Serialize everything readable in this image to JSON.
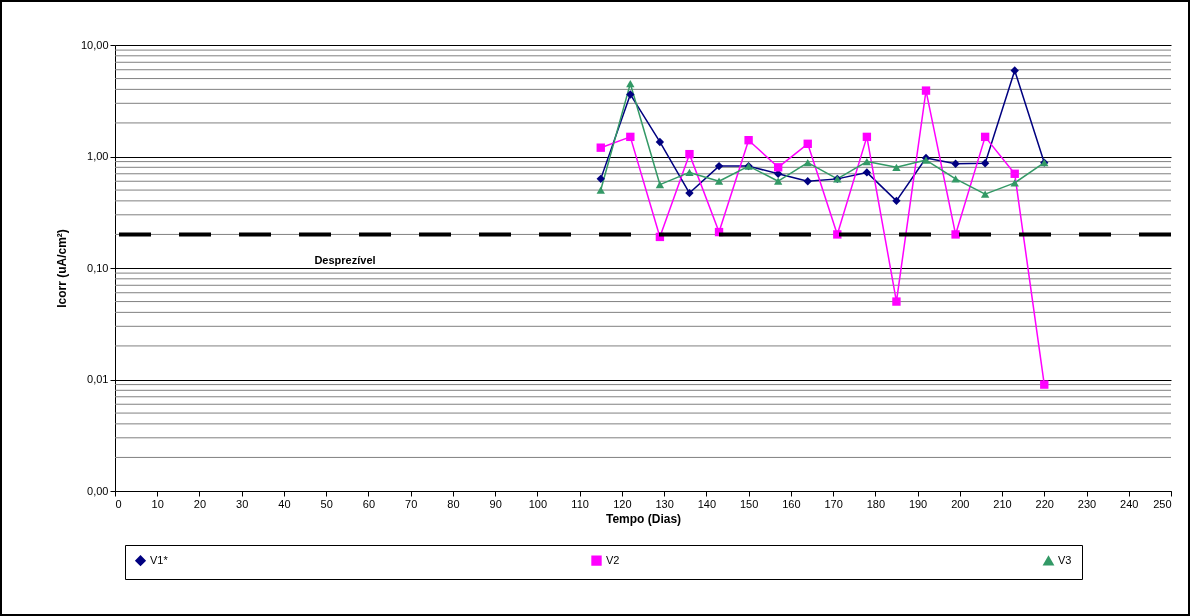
{
  "chart_data": {
    "type": "line",
    "xlabel": "Tempo (Dias)",
    "ylabel": "Icorr (uA/cm²)",
    "x": [
      115,
      122,
      129,
      136,
      143,
      150,
      157,
      164,
      171,
      178,
      185,
      192,
      199,
      206,
      213,
      220
    ],
    "series": [
      {
        "name": "V1*",
        "color": "#000080",
        "marker": "diamond",
        "values": [
          0.63,
          3.6,
          1.35,
          0.47,
          0.82,
          0.82,
          0.7,
          0.6,
          0.63,
          0.72,
          0.4,
          0.97,
          0.86,
          0.87,
          5.9,
          0.88
        ]
      },
      {
        "name": "V2",
        "color": "#ff00ff",
        "marker": "square",
        "values": [
          1.2,
          1.5,
          0.19,
          1.05,
          0.21,
          1.4,
          0.8,
          1.3,
          0.2,
          1.5,
          0.05,
          3.9,
          0.2,
          1.5,
          0.7,
          0.009
        ]
      },
      {
        "name": "V3",
        "color": "#339966",
        "marker": "triangle",
        "values": [
          0.5,
          4.5,
          0.56,
          0.72,
          0.6,
          0.82,
          0.6,
          0.88,
          0.63,
          0.9,
          0.8,
          0.93,
          0.63,
          0.46,
          0.58,
          0.88
        ]
      }
    ],
    "log": "y",
    "xlim": [
      0,
      250
    ],
    "ylim": [
      0.001,
      10
    ],
    "xticks": [
      0,
      10,
      20,
      30,
      40,
      50,
      60,
      70,
      80,
      90,
      100,
      110,
      120,
      130,
      140,
      150,
      160,
      170,
      180,
      190,
      200,
      210,
      220,
      230,
      240,
      250
    ],
    "yticks": [
      {
        "value": 0.001,
        "label": "0,00"
      },
      {
        "value": 0.01,
        "label": "0,01"
      },
      {
        "value": 0.1,
        "label": "0,10"
      },
      {
        "value": 1,
        "label": "1,00"
      },
      {
        "value": 10,
        "label": "10,00"
      }
    ],
    "ref_lines": [
      {
        "axis": "y",
        "value": 0.2,
        "label": "Desprezível",
        "line_style": "dashed",
        "color": "#000000"
      }
    ],
    "grid": "y",
    "legend": "bottom"
  }
}
